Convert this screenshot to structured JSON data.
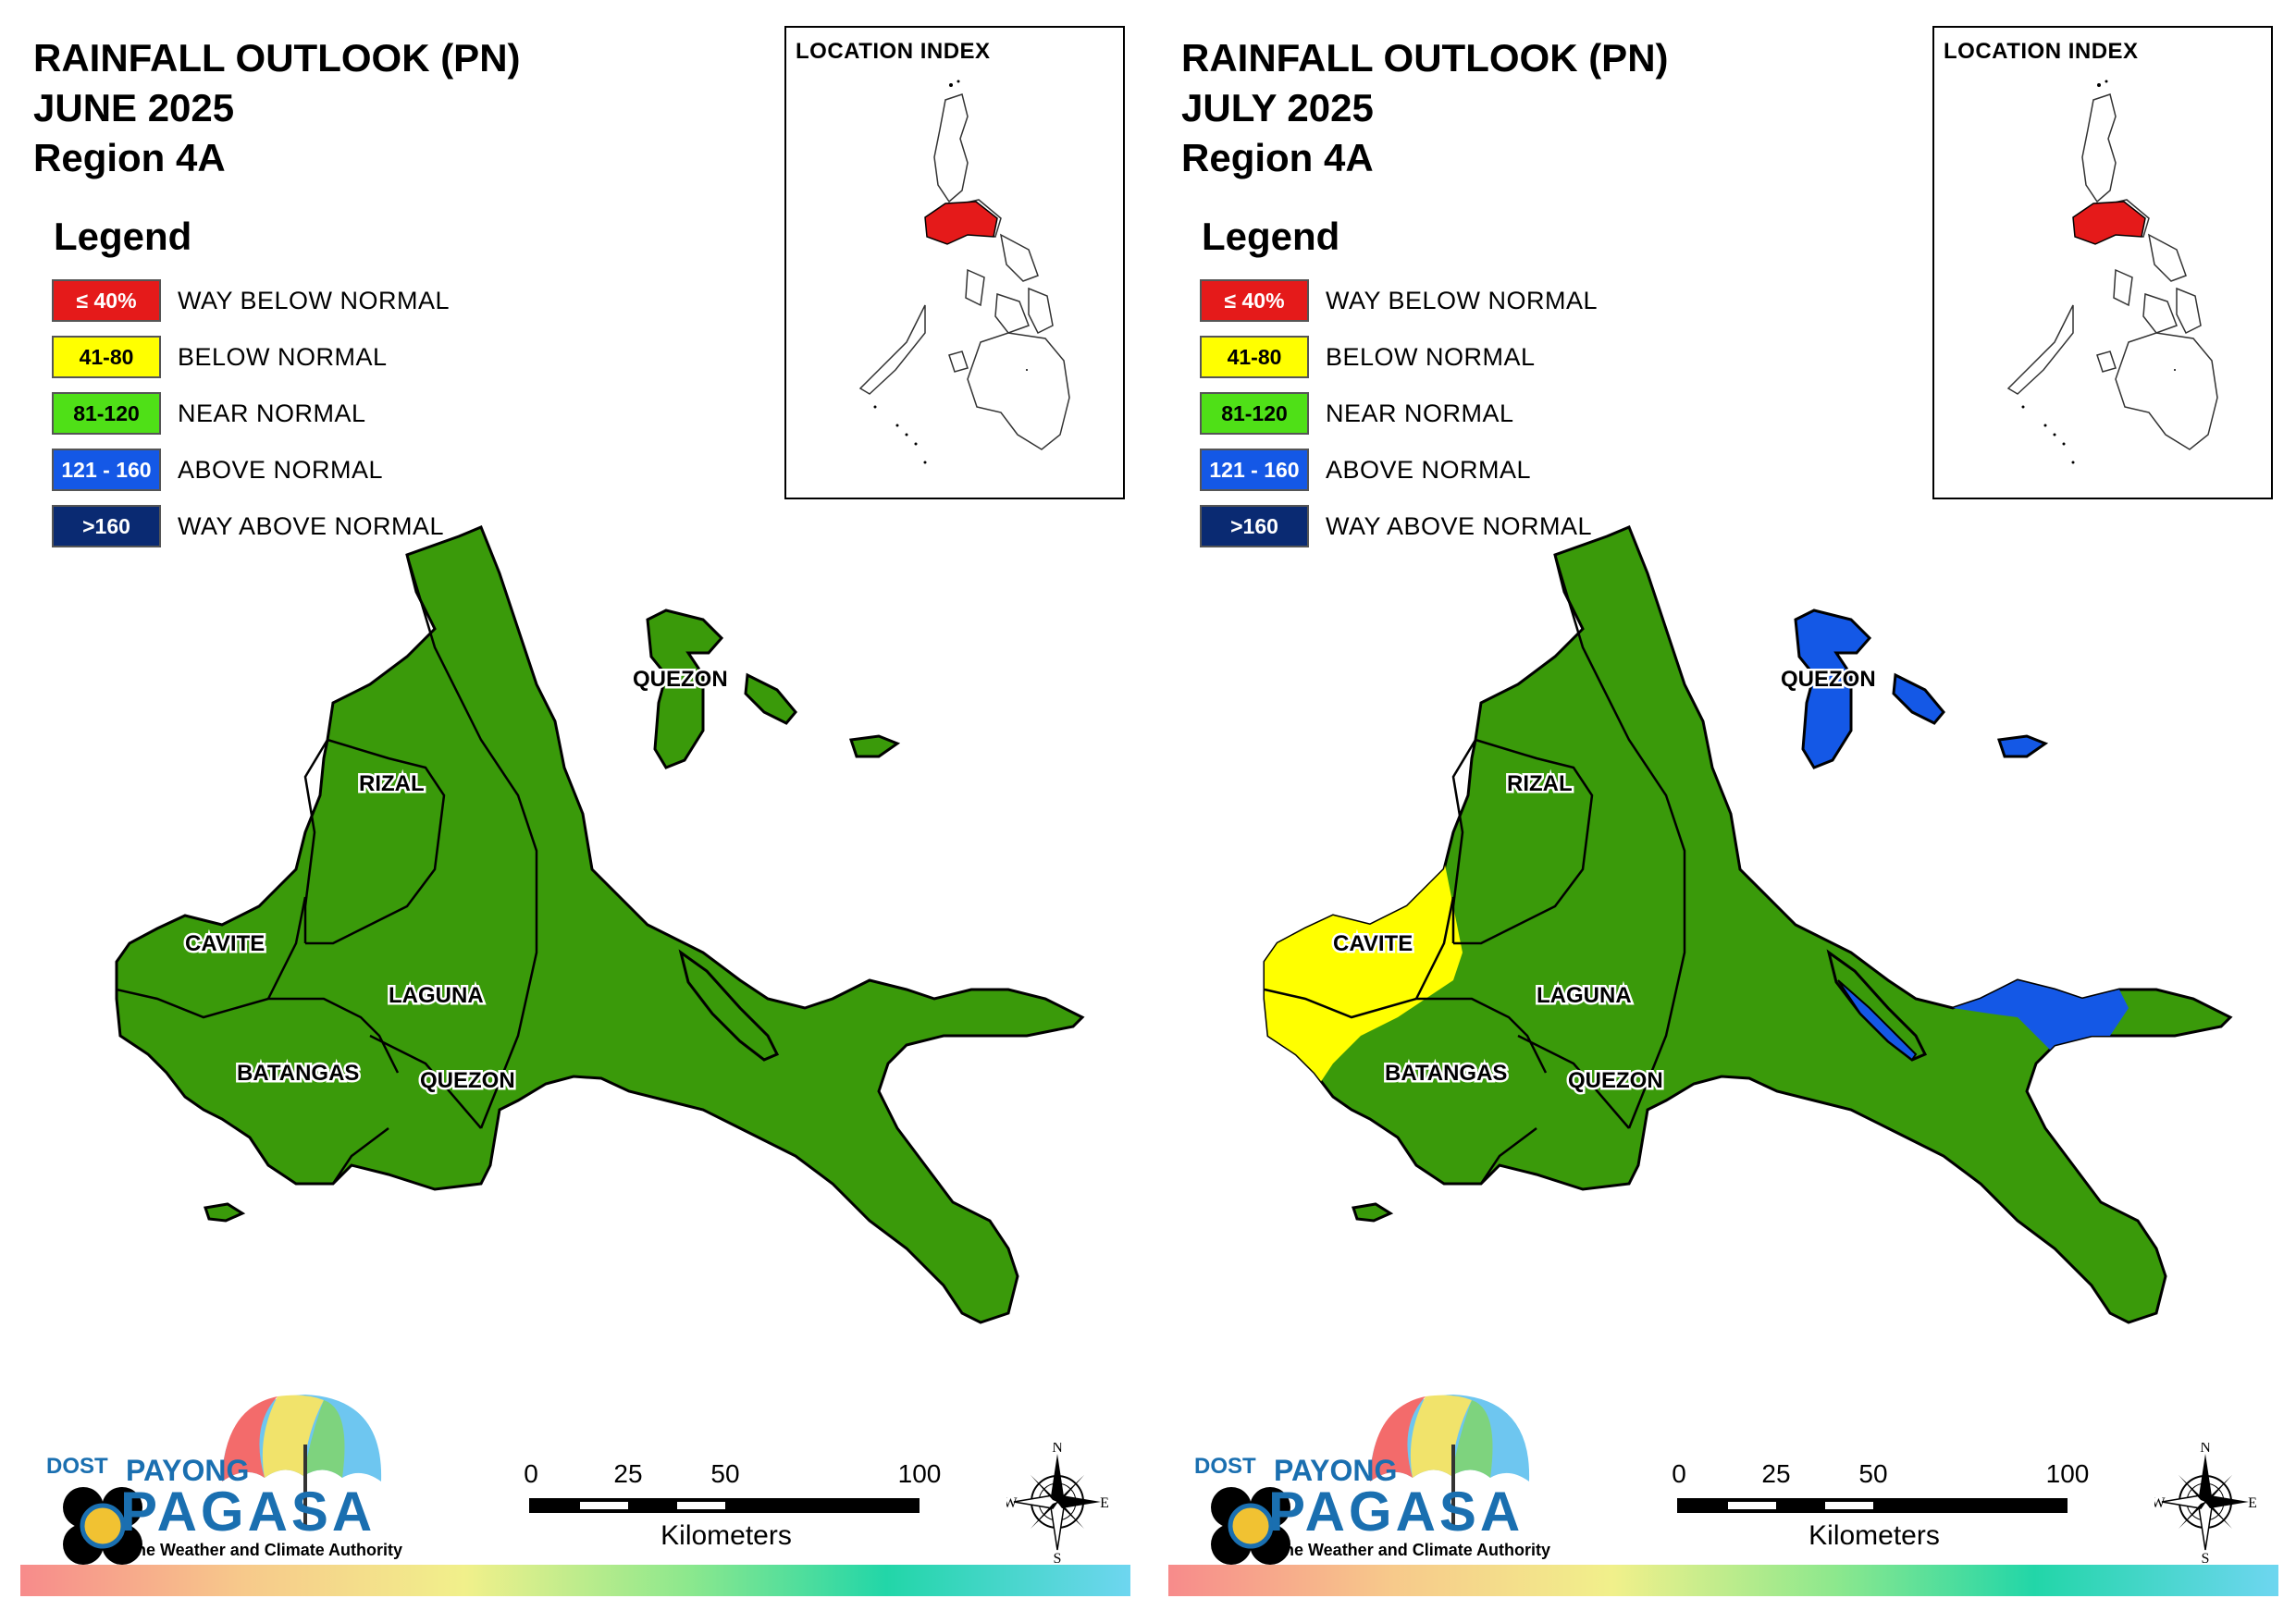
{
  "colors": {
    "way_below": "#e51a1a",
    "below": "#ffff00",
    "near": "#3a9a0a",
    "near_swatch": "#4fe017",
    "above": "#1458e6",
    "way_above": "#0a2a72"
  },
  "panels": [
    {
      "title": [
        "RAINFALL OUTLOOK (PN)",
        "JUNE 2025",
        "Region 4A"
      ],
      "map_style": "june"
    },
    {
      "title": [
        "RAINFALL OUTLOOK (PN)",
        "JULY 2025",
        "Region 4A"
      ],
      "map_style": "july"
    }
  ],
  "legend": {
    "title": "Legend",
    "items": [
      {
        "range": "≤ 40%",
        "label": "WAY BELOW NORMAL",
        "color": "#e51a1a",
        "text_color": "#ffffff"
      },
      {
        "range": "41-80",
        "label": "BELOW NORMAL",
        "color": "#ffff00",
        "text_color": "#000000"
      },
      {
        "range": "81-120",
        "label": "NEAR NORMAL",
        "color": "#4fe017",
        "text_color": "#000000"
      },
      {
        "range": "121 - 160",
        "label": "ABOVE NORMAL",
        "color": "#1458e6",
        "text_color": "#ffffff"
      },
      {
        "range": ">160",
        "label": "WAY ABOVE NORMAL",
        "color": "#0a2a72",
        "text_color": "#ffffff"
      }
    ]
  },
  "inset": {
    "title": "LOCATION INDEX"
  },
  "provinces": {
    "quezon_north": "QUEZON",
    "rizal": "RIZAL",
    "cavite": "CAVITE",
    "laguna": "LAGUNA",
    "batangas": "BATANGAS",
    "quezon_south": "QUEZON"
  },
  "scale": {
    "ticks": [
      "0",
      "25",
      "50",
      "100"
    ],
    "unit": "Kilometers"
  },
  "logo": {
    "dost": "DOST",
    "payong": "PAYONG",
    "pagasa": "PAGASA",
    "tagline": "The Weather and Climate Authority"
  },
  "compass": {
    "n": "N",
    "s": "S",
    "e": "E",
    "w": "W"
  }
}
